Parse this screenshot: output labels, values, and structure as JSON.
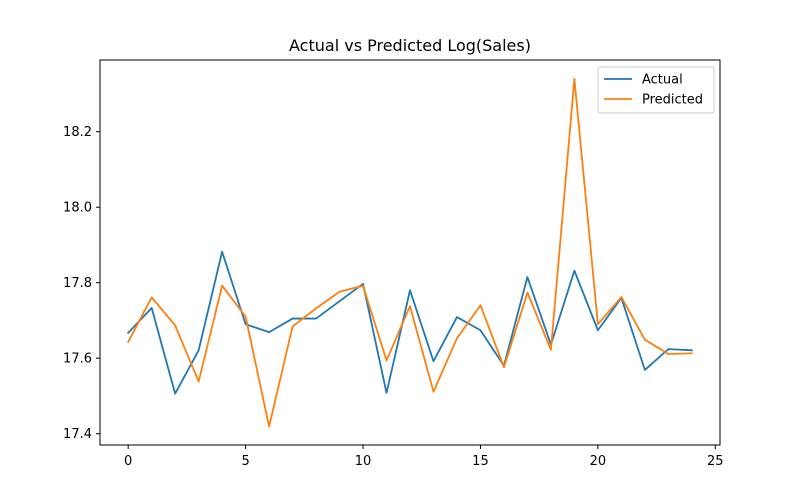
{
  "chart_data": {
    "type": "line",
    "title": "Actual vs Predicted Log(Sales)",
    "xlabel": "",
    "ylabel": "",
    "xlim": [
      -1.2,
      25.2
    ],
    "ylim": [
      17.37,
      18.39
    ],
    "grid": false,
    "legend_position": "top-right",
    "x": [
      0,
      1,
      2,
      3,
      4,
      5,
      6,
      7,
      8,
      9,
      10,
      11,
      12,
      13,
      14,
      15,
      16,
      17,
      18,
      19,
      20,
      21,
      22,
      23,
      24
    ],
    "x_ticks": [
      0,
      5,
      10,
      15,
      20,
      25
    ],
    "x_tick_labels": [
      "0",
      "5",
      "10",
      "15",
      "20",
      "25"
    ],
    "y_ticks": [
      17.4,
      17.6,
      17.8,
      18.0,
      18.2
    ],
    "y_tick_labels": [
      "17.4",
      "17.6",
      "17.8",
      "18.0",
      "18.2"
    ],
    "series": [
      {
        "name": "Actual",
        "color": "#1f77b4",
        "values": [
          17.667,
          17.733,
          17.506,
          17.621,
          17.882,
          17.69,
          17.669,
          17.705,
          17.705,
          17.751,
          17.797,
          17.508,
          17.78,
          17.592,
          17.709,
          17.674,
          17.58,
          17.815,
          17.636,
          17.832,
          17.674,
          17.76,
          17.569,
          17.624,
          17.621
        ]
      },
      {
        "name": "Predicted",
        "color": "#ff7f0e",
        "values": [
          17.643,
          17.761,
          17.687,
          17.538,
          17.792,
          17.71,
          17.419,
          17.684,
          17.732,
          17.776,
          17.792,
          17.594,
          17.738,
          17.511,
          17.653,
          17.74,
          17.576,
          17.774,
          17.622,
          18.34,
          17.69,
          17.762,
          17.649,
          17.611,
          17.613
        ]
      }
    ]
  }
}
